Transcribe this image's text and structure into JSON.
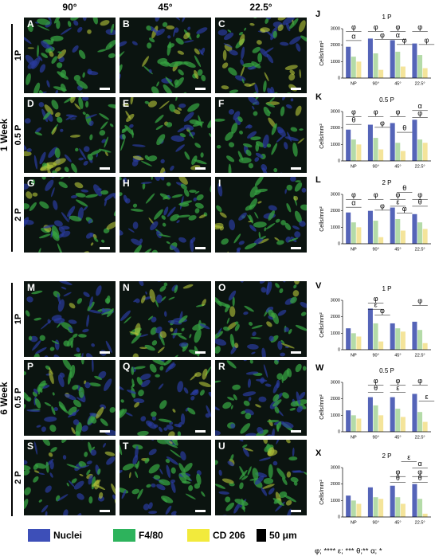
{
  "figure": {
    "columns": [
      "90°",
      "45°",
      "22.5°"
    ],
    "groups": [
      {
        "label": "1 Week",
        "rows": [
          "1P",
          "0.5 P",
          "2 P"
        ]
      },
      {
        "label": "6 Week",
        "rows": [
          "1P",
          "0.5 P",
          "2 P"
        ]
      }
    ],
    "panels": [
      "A",
      "B",
      "C",
      "D",
      "E",
      "F",
      "G",
      "H",
      "I",
      "M",
      "N",
      "O",
      "P",
      "Q",
      "R",
      "S",
      "T",
      "U"
    ],
    "legend": [
      {
        "name": "Nuclei",
        "color": "#3d4fb8"
      },
      {
        "name": "F4/80",
        "color": "#2db35c"
      },
      {
        "name": "CD 206",
        "color": "#f2ea3c"
      },
      {
        "name": "50 μm",
        "color": "#000000"
      }
    ],
    "footnote": "φ; **** ε; *** θ;** α; *"
  },
  "chart_data": [
    {
      "type": "bar",
      "panel": "J",
      "title": "1 P",
      "y_label": "Cells/mm²",
      "categories": [
        "NP",
        "90°",
        "45°",
        "22.5°"
      ],
      "series": [
        {
          "color": "#5564b8",
          "values": [
            1900,
            2400,
            2300,
            2100
          ]
        },
        {
          "color": "#b4dba8",
          "values": [
            1300,
            1500,
            1600,
            1400
          ]
        },
        {
          "color": "#f4e49a",
          "values": [
            1000,
            500,
            700,
            600
          ]
        }
      ],
      "ylim": [
        0,
        3000
      ],
      "yticks": [
        0,
        1000,
        2000,
        3000
      ],
      "annotations": [
        "φ",
        "α",
        "φ",
        "φ",
        "φ",
        "α",
        "φ",
        "φ",
        "φ"
      ]
    },
    {
      "type": "bar",
      "panel": "K",
      "title": "0.5 P",
      "y_label": "Cells/mm²",
      "categories": [
        "NP",
        "90°",
        "45°",
        "22.5°"
      ],
      "series": [
        {
          "color": "#5564b8",
          "values": [
            1900,
            2200,
            2300,
            2500
          ]
        },
        {
          "color": "#b4dba8",
          "values": [
            1300,
            1400,
            1100,
            1300
          ]
        },
        {
          "color": "#f4e49a",
          "values": [
            1000,
            700,
            600,
            1100
          ]
        }
      ],
      "ylim": [
        0,
        3000
      ],
      "yticks": [
        0,
        1000,
        2000,
        3000
      ],
      "annotations": [
        "φ",
        "θ",
        "φ",
        "φ",
        "φ",
        "θ",
        "α",
        "φ"
      ]
    },
    {
      "type": "bar",
      "panel": "L",
      "title": "2 P",
      "y_label": "Cells/mm²",
      "categories": [
        "NP",
        "90°",
        "45°",
        "22.5°"
      ],
      "series": [
        {
          "color": "#5564b8",
          "values": [
            1900,
            2000,
            2200,
            1800
          ]
        },
        {
          "color": "#b4dba8",
          "values": [
            1300,
            1400,
            1500,
            1300
          ]
        },
        {
          "color": "#f4e49a",
          "values": [
            1000,
            400,
            800,
            900
          ]
        }
      ],
      "ylim": [
        0,
        3000
      ],
      "yticks": [
        0,
        1000,
        2000,
        3000
      ],
      "annotations": [
        "φ",
        "α",
        "φ",
        "φ",
        "θ",
        "φ",
        "ε",
        "φ",
        "φ",
        "θ"
      ]
    },
    {
      "type": "bar",
      "panel": "V",
      "title": "1 P",
      "y_label": "Cells/mm²",
      "categories": [
        "NP",
        "90°",
        "45°",
        "22.5°"
      ],
      "series": [
        {
          "color": "#5564b8",
          "values": [
            1300,
            2500,
            1600,
            1700
          ]
        },
        {
          "color": "#b4dba8",
          "values": [
            1000,
            1600,
            1300,
            1200
          ]
        },
        {
          "color": "#f4e49a",
          "values": [
            800,
            500,
            1100,
            400
          ]
        }
      ],
      "ylim": [
        0,
        3000
      ],
      "yticks": [
        0,
        1000,
        2000,
        3000
      ],
      "annotations": [
        "φ",
        "ε",
        "φ",
        "φ"
      ]
    },
    {
      "type": "bar",
      "panel": "W",
      "title": "0.5 P",
      "y_label": "Cells/mm²",
      "categories": [
        "NP",
        "90°",
        "45°",
        "22.5°"
      ],
      "series": [
        {
          "color": "#5564b8",
          "values": [
            1300,
            2100,
            2100,
            2300
          ]
        },
        {
          "color": "#b4dba8",
          "values": [
            1000,
            1600,
            1400,
            1200
          ]
        },
        {
          "color": "#f4e49a",
          "values": [
            800,
            1000,
            900,
            600
          ]
        }
      ],
      "ylim": [
        0,
        3000
      ],
      "yticks": [
        0,
        1000,
        2000,
        3000
      ],
      "annotations": [
        "φ",
        "θ",
        "φ",
        "ε",
        "φ",
        "ε"
      ]
    },
    {
      "type": "bar",
      "panel": "X",
      "title": "2 P",
      "y_label": "Cells/mm²",
      "categories": [
        "NP",
        "90°",
        "45°",
        "22.5°"
      ],
      "series": [
        {
          "color": "#5564b8",
          "values": [
            1300,
            1800,
            1900,
            2000
          ]
        },
        {
          "color": "#b4dba8",
          "values": [
            1000,
            1200,
            1200,
            1100
          ]
        },
        {
          "color": "#f4e49a",
          "values": [
            800,
            1100,
            800,
            200
          ]
        }
      ],
      "ylim": [
        0,
        3000
      ],
      "yticks": [
        0,
        1000,
        2000,
        3000
      ],
      "annotations": [
        "ε",
        "α",
        "φ",
        "θ",
        "φ",
        "θ"
      ]
    }
  ]
}
